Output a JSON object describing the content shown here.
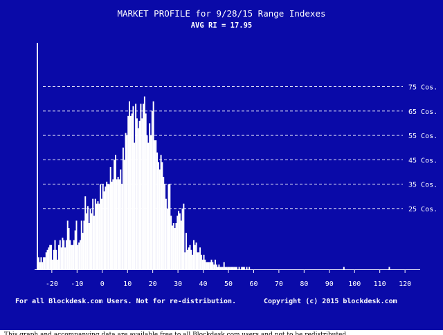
{
  "chart_data": {
    "type": "bar",
    "title": "MARKET PROFILE for 9/28/15 Range Indexes",
    "subtitle": "AVG RI = 17.95",
    "xlabel": "",
    "ylabel": "",
    "x_ticks": [
      -20,
      -10,
      0,
      10,
      20,
      30,
      40,
      50,
      60,
      70,
      80,
      90,
      100,
      110,
      120
    ],
    "xlim": [
      -26,
      126
    ],
    "y_ticks": [
      25,
      35,
      45,
      55,
      65,
      75
    ],
    "y_tick_suffix": " Cos.",
    "ylim": [
      0,
      95
    ],
    "grid": "horizontal dashed",
    "bar_start": -26,
    "bar_width": 1,
    "values": [
      93,
      5,
      3,
      5,
      3,
      5,
      5,
      7,
      8,
      9,
      10,
      10,
      4,
      8,
      12,
      8,
      4,
      10,
      12,
      9,
      13,
      12,
      9,
      12,
      20,
      17,
      12,
      10,
      10,
      12,
      16,
      20,
      10,
      11,
      12,
      20,
      15,
      20,
      30,
      23,
      26,
      19,
      25,
      23,
      29,
      22,
      29,
      27,
      28,
      27,
      35,
      29,
      35,
      32,
      34,
      36,
      35,
      35,
      42,
      36,
      37,
      45,
      47,
      37,
      38,
      37,
      41,
      35,
      50,
      45,
      56,
      55,
      63,
      69,
      63,
      64,
      67,
      52,
      68,
      62,
      58,
      61,
      68,
      62,
      68,
      71,
      64,
      55,
      52,
      60,
      55,
      65,
      69,
      53,
      53,
      48,
      44,
      41,
      47,
      44,
      38,
      35,
      29,
      25,
      35,
      35,
      22,
      18,
      19,
      17,
      19,
      22,
      24,
      23,
      20,
      25,
      27,
      7,
      15,
      8,
      9,
      10,
      8,
      6,
      12,
      10,
      11,
      7,
      7,
      9,
      6,
      4,
      6,
      4,
      3,
      3,
      3,
      3,
      4,
      3,
      2,
      4,
      2,
      1,
      2,
      1,
      1,
      1,
      3,
      1,
      1,
      1,
      1,
      1,
      1,
      1,
      1,
      1,
      1,
      0,
      1,
      0,
      1,
      1,
      1,
      0,
      1,
      0,
      1,
      0,
      0,
      0,
      0,
      0,
      0,
      0,
      0,
      0,
      0,
      0,
      0,
      0,
      0,
      0,
      0,
      0,
      0,
      0,
      0,
      0,
      0,
      0,
      0,
      0,
      0,
      0,
      0,
      0,
      0,
      0,
      0,
      0,
      0,
      0,
      0,
      0,
      0,
      0,
      0,
      0,
      0,
      0,
      0,
      0,
      0,
      0,
      0,
      0,
      0,
      0,
      0,
      0,
      0,
      0,
      0,
      0,
      0,
      0,
      0,
      0,
      0,
      0,
      0,
      0,
      0,
      0,
      0,
      0,
      0,
      0,
      0,
      0,
      0,
      1,
      0,
      0,
      0,
      0,
      0,
      0,
      0,
      0,
      0,
      0,
      0,
      0,
      0,
      0,
      0,
      0,
      0,
      0,
      0,
      0,
      0,
      0,
      0,
      0,
      0,
      0,
      0,
      0,
      0,
      0,
      0,
      0,
      0,
      0,
      0,
      1,
      0,
      0,
      0,
      0,
      0,
      0,
      0,
      0,
      0,
      0,
      0,
      0,
      0,
      0,
      0,
      0,
      0,
      0,
      0,
      0,
      0,
      0,
      0,
      0
    ],
    "colors": {
      "background": "#0a0aa8",
      "bars": "#ffffff",
      "text": "#ffffff"
    }
  },
  "footer": {
    "left": "For all Blockdesk.com Users. Not for re-distribution.",
    "right": "Copyright (c) 2015 blockdesk.com"
  },
  "caption": "This graph and accompanying data are available free to all Blockdesk.com users and not to be redistributed."
}
